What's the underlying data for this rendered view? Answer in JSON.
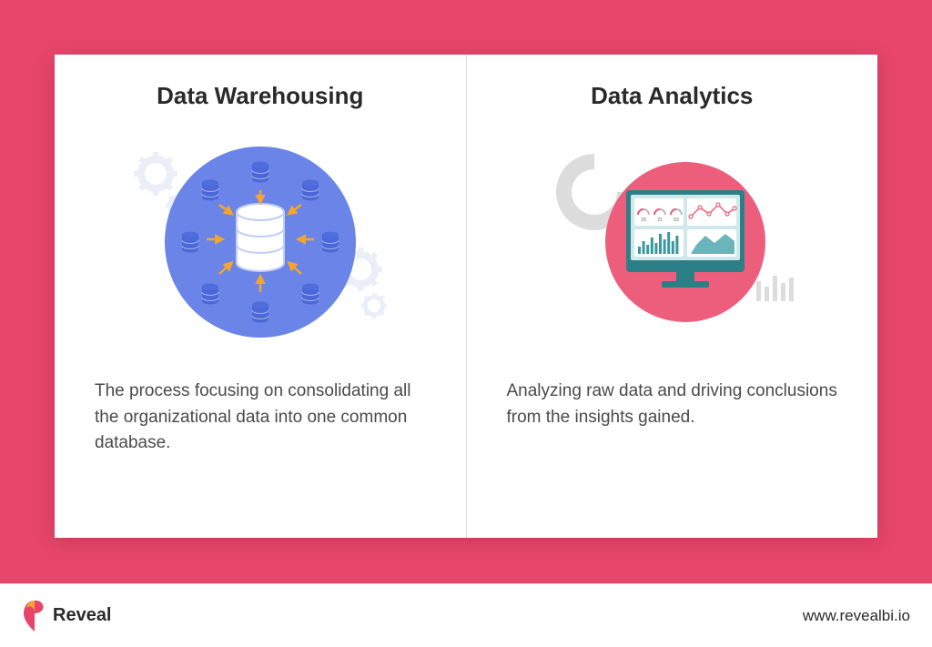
{
  "colors": {
    "brand_pink": "#e7456a",
    "card_bg": "#ffffff",
    "title_color": "#2a2a2a",
    "desc_color": "#4a4a4a",
    "warehouse_circle": "#6b84e8",
    "warehouse_db_fill": "#ffffff",
    "warehouse_db_stroke": "#c0cdf5",
    "warehouse_small_db": "#4a68d8",
    "warehouse_arrow": "#f5a52f",
    "gear_color": "#dde3f2",
    "analytics_circle": "#ec5e7c",
    "monitor_frame": "#2b8088",
    "monitor_screen": "#cfe9eb",
    "donut_color": "#dcdcdc",
    "bars_color": "#dcdcdc",
    "chart_line_pink": "#ec5e7c",
    "chart_bars_teal": "#3a97a0",
    "chart_area_teal": "#6bb4bc"
  },
  "left": {
    "title": "Data Warehousing",
    "description": "The process focusing on consolidating all the organizational data into one common database."
  },
  "right": {
    "title": "Data Analytics",
    "description": "Analyzing raw data and driving conclusions from the insights gained."
  },
  "footer": {
    "logo_text": "Reveal",
    "url": "www.revealbi.io"
  }
}
